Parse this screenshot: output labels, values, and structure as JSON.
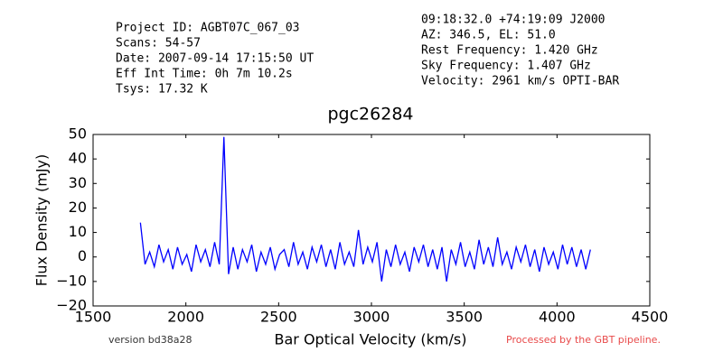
{
  "chart_data": {
    "type": "line",
    "title": "pgc26284",
    "info_left": [
      "Project ID: AGBT07C_067_03",
      "Scans: 54-57",
      "Date: 2007-09-14 17:15:50 UT",
      "Eff Int Time: 0h 7m 10.2s",
      "Tsys: 17.32 K"
    ],
    "info_right": [
      "09:18:32.0 +74:19:09 J2000",
      "AZ: 346.5, EL: 51.0",
      "Rest Frequency:   1.420 GHz",
      "Sky Frequency:    1.407 GHz",
      "Velocity: 2961 km/s OPTI-BAR"
    ],
    "footer_left": "version bd38a28",
    "footer_right": "Processed by the GBT pipeline.",
    "x_label": "Bar Optical Velocity (km/s)",
    "y_label": "Flux Density (mJy)",
    "xlim": [
      1500,
      4500
    ],
    "xticks": [
      1500,
      2000,
      2500,
      3000,
      3500,
      4000,
      4500
    ],
    "ylim": [
      -20,
      50
    ],
    "yticks": [
      {
        "value": -20,
        "label": "−20"
      },
      {
        "value": -10,
        "label": "−10"
      },
      0,
      10,
      20,
      30,
      40,
      50
    ],
    "series": [
      {
        "color": "#0000ff",
        "x": [
          1755,
          1780,
          1805,
          1830,
          1855,
          1880,
          1905,
          1930,
          1955,
          1980,
          2005,
          2030,
          2055,
          2080,
          2105,
          2130,
          2155,
          2180,
          2205,
          2230,
          2255,
          2280,
          2305,
          2330,
          2355,
          2380,
          2405,
          2430,
          2455,
          2480,
          2505,
          2530,
          2555,
          2580,
          2605,
          2630,
          2655,
          2680,
          2705,
          2730,
          2755,
          2780,
          2805,
          2830,
          2855,
          2880,
          2905,
          2930,
          2955,
          2980,
          3005,
          3030,
          3055,
          3080,
          3105,
          3130,
          3155,
          3180,
          3205,
          3230,
          3255,
          3280,
          3305,
          3330,
          3355,
          3380,
          3405,
          3430,
          3455,
          3480,
          3505,
          3530,
          3555,
          3580,
          3605,
          3630,
          3655,
          3680,
          3705,
          3730,
          3755,
          3780,
          3805,
          3830,
          3855,
          3880,
          3905,
          3930,
          3955,
          3980,
          4005,
          4030,
          4055,
          4080,
          4105,
          4130,
          4155,
          4180
        ],
        "values": [
          14,
          -3,
          2,
          -4,
          5,
          -2,
          3,
          -5,
          4,
          -3,
          1,
          -6,
          5,
          -2,
          3,
          -4,
          6,
          -3,
          49,
          -7,
          4,
          -5,
          3,
          -2,
          5,
          -6,
          2,
          -3,
          4,
          -5,
          1,
          3,
          -4,
          6,
          -3,
          2,
          -5,
          4,
          -2,
          5,
          -4,
          3,
          -5,
          6,
          -3,
          2,
          -4,
          11,
          -3,
          4,
          -2,
          6,
          -10,
          3,
          -4,
          5,
          -3,
          2,
          -6,
          4,
          -2,
          5,
          -4,
          3,
          -5,
          4,
          -10,
          3,
          -3,
          6,
          -4,
          2,
          -5,
          7,
          -3,
          4,
          -4,
          8,
          -3,
          2,
          -5,
          4,
          -2,
          5,
          -4,
          3,
          -6,
          4,
          -3,
          2,
          -5,
          5,
          -3,
          4,
          -4,
          3,
          -5,
          3
        ]
      }
    ]
  }
}
